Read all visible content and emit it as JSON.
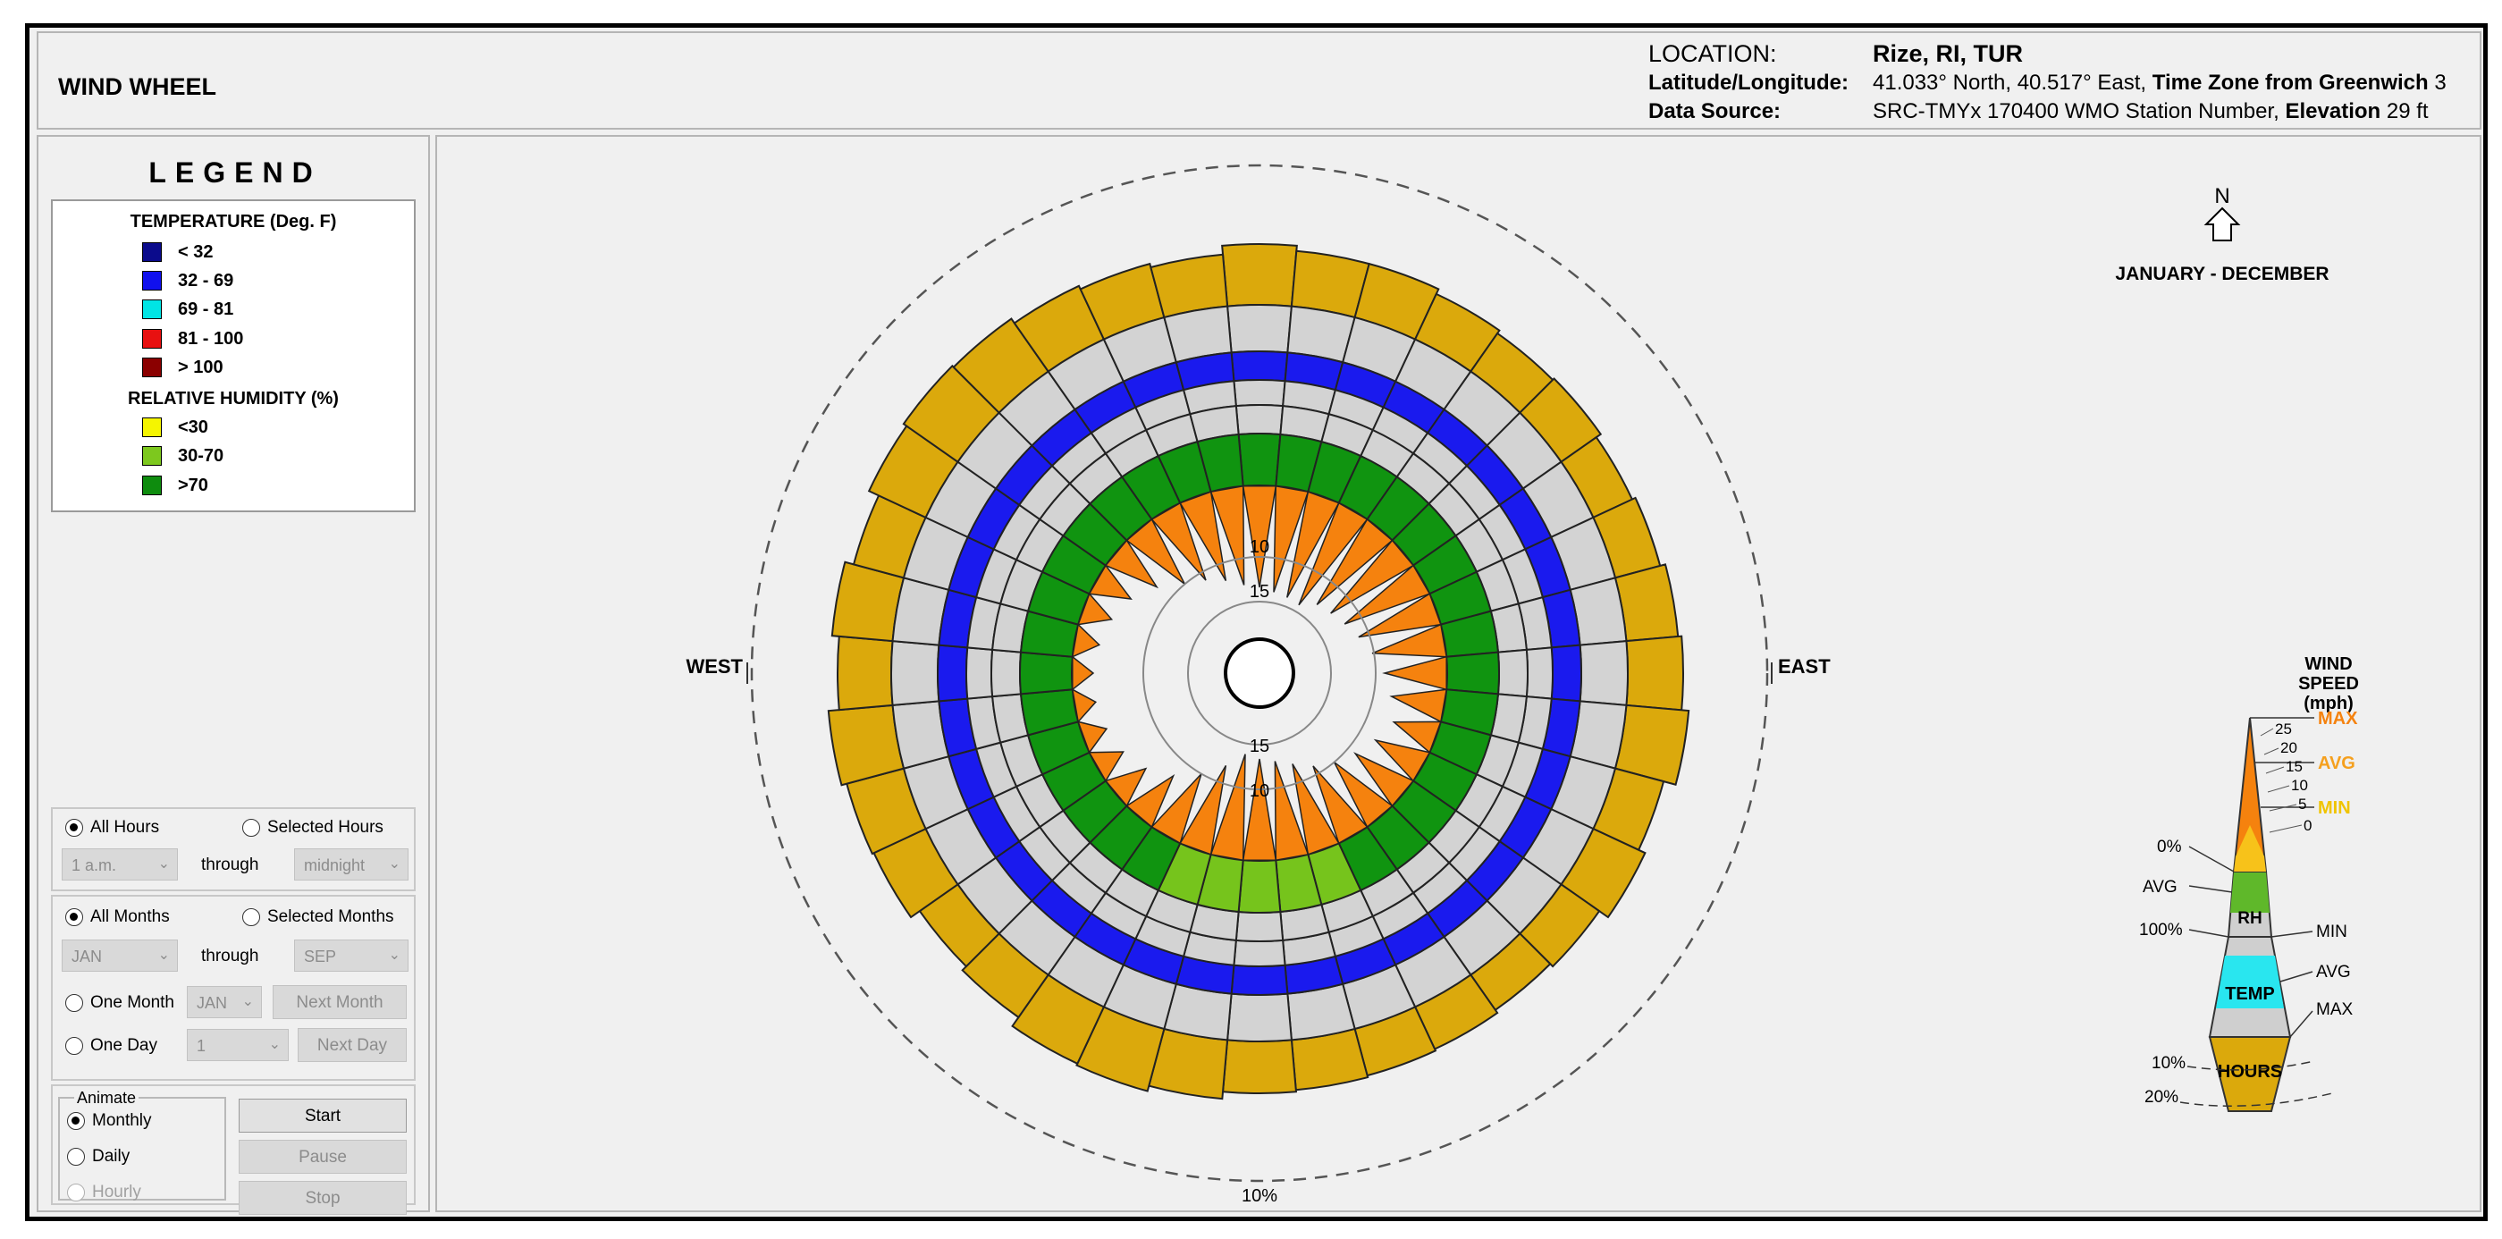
{
  "header": {
    "title": "WIND WHEEL",
    "location_label": "LOCATION:",
    "location_value": "Rize, RI, TUR",
    "latlon_label": "Latitude/Longitude:",
    "latlon_value": "41.033° North, 40.517° East, ",
    "timezone_label": "Time Zone from Greenwich",
    "timezone_value": " 3",
    "source_label": "Data Source:",
    "source_value": "SRC-TMYx    170400 WMO Station Number, ",
    "elevation_label": "Elevation",
    "elevation_value": " 29 ft"
  },
  "legend": {
    "title": "LEGEND",
    "temp_heading": "TEMPERATURE (Deg. F)",
    "temp_items": [
      {
        "label": "< 32",
        "color": "#0b0b8c"
      },
      {
        "label": "32  -  69",
        "color": "#1010ee"
      },
      {
        "label": "69  -  81",
        "color": "#00e5e5"
      },
      {
        "label": "81  -  100",
        "color": "#e81010"
      },
      {
        "label": "> 100",
        "color": "#8b0000"
      }
    ],
    "rh_heading": "RELATIVE HUMIDITY (%)",
    "rh_items": [
      {
        "label": "<30",
        "color": "#f5f500"
      },
      {
        "label": "30-70",
        "color": "#7dc81e"
      },
      {
        "label": ">70",
        "color": "#0e8c0e"
      }
    ]
  },
  "controls": {
    "hours": {
      "all": "All Hours",
      "selected": "Selected Hours",
      "from": "1 a.m.",
      "through": "through",
      "to": "midnight"
    },
    "months": {
      "all": "All Months",
      "selected": "Selected Months",
      "from": "JAN",
      "through": "through",
      "to": "SEP"
    },
    "one_month": {
      "label": "One Month",
      "value": "JAN",
      "button": "Next Month"
    },
    "one_day": {
      "label": "One Day",
      "value": "1",
      "button": "Next Day"
    },
    "animate": {
      "legend": "Animate",
      "monthly": "Monthly",
      "daily": "Daily",
      "hourly": "Hourly",
      "start": "Start",
      "pause": "Pause",
      "stop": "Stop"
    }
  },
  "plot": {
    "north": "N",
    "period": "JANUARY - DECEMBER",
    "west": "WEST",
    "east": "EAST",
    "outer_pct": "10%",
    "speed_rings": [
      "10",
      "15",
      "15",
      "10"
    ],
    "key": {
      "title_1": "WIND",
      "title_2": "SPEED",
      "title_3": "(mph)",
      "max": "MAX",
      "avg": "AVG",
      "min": "MIN",
      "ticks": [
        "25",
        "20",
        "15",
        "10",
        "5",
        "0"
      ],
      "rh_0": "0%",
      "rh_avg": "AVG",
      "rh_100": "100%",
      "rh": "RH",
      "t_min": "MIN",
      "t_avg": "AVG",
      "t_max": "MAX",
      "temp": "TEMP",
      "h10": "10%",
      "h20": "20%",
      "hours": "HOURS"
    }
  },
  "colors": {
    "hours": "#dba90c",
    "temp_gray": "#d3d3d3",
    "temp_blue": "#1a1aee",
    "rh_green": "#109410",
    "rh_light": "#76c41c",
    "speed": "#f5820e",
    "max_label": "#f5820e",
    "avg_label": "#f5a01e",
    "min_label": "#f0c400",
    "key_rh": "#5fb82a",
    "key_temp": "#29e6ef",
    "key_gray": "#cfcfcf"
  }
}
